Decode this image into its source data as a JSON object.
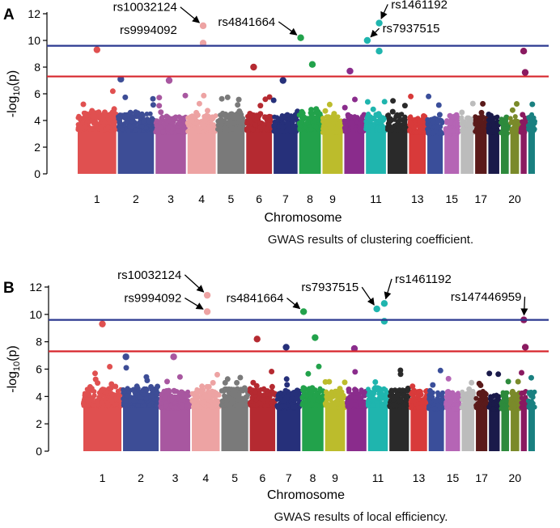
{
  "chart_data": [
    {
      "type": "scatter",
      "panel_label": "A",
      "caption": "GWAS results of clustering coefficient.",
      "xlabel": "Chromosome",
      "ylabel_main": "-log",
      "ylabel_sub": "10",
      "ylabel_tail": "(p)",
      "ylim": [
        0,
        12
      ],
      "yticks": [
        "0",
        "2",
        "4",
        "6",
        "8",
        "10",
        "12"
      ],
      "xtick_labels": [
        {
          "chromosome": 1,
          "label": "1"
        },
        {
          "chromosome": 2,
          "label": "2"
        },
        {
          "chromosome": 3,
          "label": "3"
        },
        {
          "chromosome": 4,
          "label": "4"
        },
        {
          "chromosome": 5,
          "label": "5"
        },
        {
          "chromosome": 6,
          "label": "6"
        },
        {
          "chromosome": 7,
          "label": "7"
        },
        {
          "chromosome": 8,
          "label": "8"
        },
        {
          "chromosome": 9,
          "label": "9"
        },
        {
          "chromosome": 11,
          "label": "11"
        },
        {
          "chromosome": 13,
          "label": "13"
        },
        {
          "chromosome": 15,
          "label": "15"
        },
        {
          "chromosome": 17,
          "label": "17"
        },
        {
          "chromosome": 20,
          "label": "20"
        }
      ],
      "genomewide_threshold": 9.6,
      "suggestive_threshold": 7.3,
      "baseline_max": [
        4.6,
        4.5,
        4.3,
        4.4,
        4.6,
        4.5,
        4.4,
        4.6,
        4.3,
        4.4,
        4.5,
        4.5,
        4.3,
        4.2,
        4.2,
        4.3,
        4.4,
        4.3,
        4.2,
        4.3,
        4.3,
        4.5
      ],
      "top_points": [
        {
          "chromosome": 1,
          "pos": 0.5,
          "y": 9.3
        },
        {
          "chromosome": 2,
          "pos": 0.1,
          "y": 7.1
        },
        {
          "chromosome": 3,
          "pos": 0.45,
          "y": 7.0
        },
        {
          "chromosome": 4,
          "pos": 0.55,
          "y": 11.1
        },
        {
          "chromosome": 4,
          "pos": 0.55,
          "y": 9.8
        },
        {
          "chromosome": 6,
          "pos": 0.3,
          "y": 8.0
        },
        {
          "chromosome": 7,
          "pos": 0.4,
          "y": 7.0
        },
        {
          "chromosome": 8,
          "pos": 0.1,
          "y": 10.2
        },
        {
          "chromosome": 8,
          "pos": 0.6,
          "y": 8.2
        },
        {
          "chromosome": 10,
          "pos": 0.3,
          "y": 7.7
        },
        {
          "chromosome": 11,
          "pos": 0.1,
          "y": 10.0
        },
        {
          "chromosome": 11,
          "pos": 0.65,
          "y": 11.3
        },
        {
          "chromosome": 11,
          "pos": 0.65,
          "y": 9.2
        },
        {
          "chromosome": 21,
          "pos": 0.5,
          "y": 9.2
        },
        {
          "chromosome": 21,
          "pos": 0.7,
          "y": 7.6
        }
      ],
      "annotations": [
        {
          "label": "rs10032124",
          "chromosome": 4,
          "pos": 0.55,
          "y": 11.1,
          "arrow": true,
          "anchor": "end",
          "tx_chr": 3.7,
          "ty": 12.2
        },
        {
          "label": "rs9994092",
          "chromosome": 4,
          "pos": 0.55,
          "y": 9.8,
          "arrow": false,
          "anchor": "end",
          "tx_chr": 3.7,
          "ty": 10.5
        },
        {
          "label": "rs4841664",
          "chromosome": 8,
          "pos": 0.1,
          "y": 10.2,
          "arrow": true,
          "anchor": "end",
          "tx_chr": 7.1,
          "ty": 11.1
        },
        {
          "label": "rs1461192",
          "chromosome": 11,
          "pos": 0.65,
          "y": 11.3,
          "arrow": true,
          "anchor": "start",
          "tx_chr": 12.2,
          "ty": 12.4
        },
        {
          "label": "rs7937515",
          "chromosome": 11,
          "pos": 0.1,
          "y": 10.0,
          "arrow": true,
          "anchor": "start",
          "tx_chr": 11.8,
          "ty": 10.6
        }
      ]
    },
    {
      "type": "scatter",
      "panel_label": "B",
      "caption": "GWAS results of local efficiency.",
      "xlabel": "Chromosome",
      "ylabel_main": "-log",
      "ylabel_sub": "10",
      "ylabel_tail": "(p)",
      "ylim": [
        0,
        12
      ],
      "yticks": [
        "0",
        "2",
        "4",
        "6",
        "8",
        "10",
        "12"
      ],
      "xtick_labels": [
        {
          "chromosome": 1,
          "label": "1"
        },
        {
          "chromosome": 2,
          "label": "2"
        },
        {
          "chromosome": 3,
          "label": "3"
        },
        {
          "chromosome": 4,
          "label": "4"
        },
        {
          "chromosome": 5,
          "label": "5"
        },
        {
          "chromosome": 6,
          "label": "6"
        },
        {
          "chromosome": 7,
          "label": "7"
        },
        {
          "chromosome": 8,
          "label": "8"
        },
        {
          "chromosome": 9,
          "label": "9"
        },
        {
          "chromosome": 11,
          "label": "11"
        },
        {
          "chromosome": 13,
          "label": "13"
        },
        {
          "chromosome": 15,
          "label": "15"
        },
        {
          "chromosome": 17,
          "label": "17"
        },
        {
          "chromosome": 20,
          "label": "20"
        }
      ],
      "genomewide_threshold": 9.6,
      "suggestive_threshold": 7.3,
      "baseline_max": [
        4.6,
        4.6,
        4.4,
        4.5,
        4.6,
        4.6,
        4.4,
        4.6,
        4.4,
        4.5,
        4.6,
        4.5,
        4.4,
        4.3,
        4.3,
        4.4,
        4.4,
        4.3,
        4.3,
        4.3,
        4.4,
        4.4
      ],
      "top_points": [
        {
          "chromosome": 1,
          "pos": 0.5,
          "y": 9.3
        },
        {
          "chromosome": 2,
          "pos": 0.1,
          "y": 6.9
        },
        {
          "chromosome": 3,
          "pos": 0.45,
          "y": 6.9
        },
        {
          "chromosome": 4,
          "pos": 0.55,
          "y": 11.4
        },
        {
          "chromosome": 4,
          "pos": 0.55,
          "y": 10.2
        },
        {
          "chromosome": 6,
          "pos": 0.3,
          "y": 8.2
        },
        {
          "chromosome": 7,
          "pos": 0.4,
          "y": 7.6
        },
        {
          "chromosome": 8,
          "pos": 0.1,
          "y": 10.2
        },
        {
          "chromosome": 8,
          "pos": 0.6,
          "y": 8.3
        },
        {
          "chromosome": 10,
          "pos": 0.4,
          "y": 7.5
        },
        {
          "chromosome": 11,
          "pos": 0.45,
          "y": 10.4
        },
        {
          "chromosome": 11,
          "pos": 0.8,
          "y": 10.8
        },
        {
          "chromosome": 11,
          "pos": 0.8,
          "y": 9.5
        },
        {
          "chromosome": 21,
          "pos": 0.5,
          "y": 9.6
        },
        {
          "chromosome": 21,
          "pos": 0.7,
          "y": 7.6
        }
      ],
      "annotations": [
        {
          "label": "rs10032124",
          "chromosome": 4,
          "pos": 0.55,
          "y": 11.4,
          "arrow": true,
          "anchor": "end",
          "tx_chr": 3.7,
          "ty": 12.6
        },
        {
          "label": "rs9994092",
          "chromosome": 4,
          "pos": 0.55,
          "y": 10.2,
          "arrow": true,
          "anchor": "end",
          "tx_chr": 3.7,
          "ty": 10.9
        },
        {
          "label": "rs4841664",
          "chromosome": 8,
          "pos": 0.1,
          "y": 10.2,
          "arrow": true,
          "anchor": "end",
          "tx_chr": 7.3,
          "ty": 10.9
        },
        {
          "label": "rs7937515",
          "chromosome": 11,
          "pos": 0.45,
          "y": 10.4,
          "arrow": true,
          "anchor": "end",
          "tx_chr": 10.6,
          "ty": 11.7
        },
        {
          "label": "rs1461192",
          "chromosome": 11,
          "pos": 0.8,
          "y": 10.8,
          "arrow": true,
          "anchor": "start",
          "tx_chr": 12.3,
          "ty": 12.3
        },
        {
          "label": "rs147446959",
          "chromosome": 21,
          "pos": 0.5,
          "y": 9.6,
          "arrow": true,
          "anchor": "end",
          "tx_chr": 21.2,
          "ty": 11.0
        }
      ]
    }
  ],
  "chromosome_colors": [
    "#e05050",
    "#3d4d96",
    "#a857a0",
    "#eda3a3",
    "#7a7a7a",
    "#b52a31",
    "#26307a",
    "#22a24b",
    "#bcbc2c",
    "#8a2c8c",
    "#1fb5ae",
    "#2a2a2a",
    "#d83a3a",
    "#3a4e9a",
    "#b565b5",
    "#bcbcbc",
    "#5a1a1a",
    "#1a1a4a",
    "#2d8a3c",
    "#7a8a2a",
    "#8a1a60",
    "#1a8080"
  ],
  "threshold_colors": {
    "genomewide": "#2b3990",
    "suggestive": "#d7262c"
  }
}
